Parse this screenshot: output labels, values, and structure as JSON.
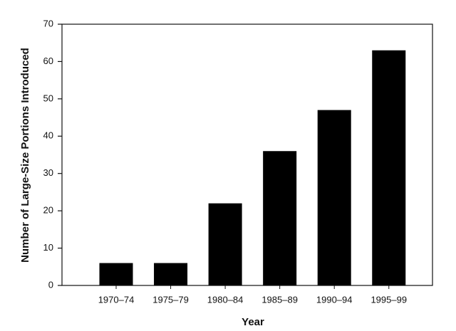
{
  "chart_data": {
    "type": "bar",
    "x_label": "Year",
    "y_label": "Number of Large-Size Portions Introduced",
    "categories": [
      "1970–74",
      "1975–79",
      "1980–84",
      "1985–89",
      "1990–94",
      "1995–99"
    ],
    "values": [
      6,
      6,
      22,
      36,
      47,
      63
    ],
    "color": "#000000",
    "ylim": [
      0,
      70
    ],
    "yticks": [
      0,
      10,
      20,
      30,
      40,
      50,
      60,
      70
    ]
  }
}
